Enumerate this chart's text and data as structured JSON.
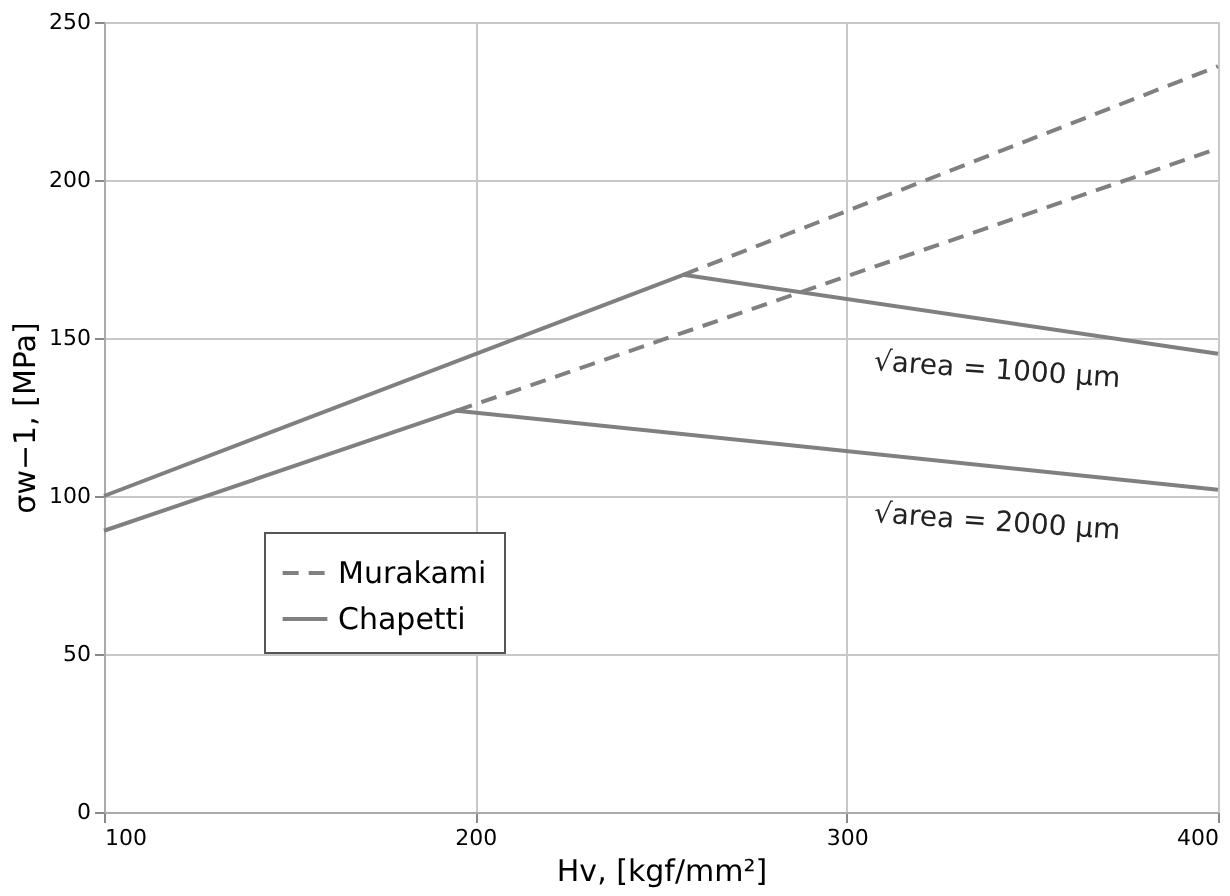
{
  "chart_data": {
    "type": "line",
    "xlabel": "Hv, [kgf/mm²]",
    "ylabel": "σw−1, [MPa]",
    "xlim": [
      100,
      400
    ],
    "xticks": [
      100,
      200,
      300,
      400
    ],
    "ylim": [
      0,
      250
    ],
    "yticks": [
      0,
      50,
      100,
      150,
      200,
      250
    ],
    "grid": true,
    "legend": "bottom left",
    "marker": "none",
    "series": [
      {
        "name": "Murakami",
        "color": "#808080",
        "line_style": "dashed",
        "x": [
          256,
          400
        ],
        "values": [
          170,
          236
        ]
      },
      {
        "color": "#808080",
        "line_style": "dashed",
        "x": [
          195,
          400
        ],
        "values": [
          127,
          210
        ]
      },
      {
        "name": "Chapetti",
        "color": "#808080",
        "line_style": "solid",
        "x": [
          100,
          256,
          400
        ],
        "values": [
          100,
          170,
          145
        ]
      },
      {
        "color": "#808080",
        "line_style": "solid",
        "x": [
          100,
          195,
          400
        ],
        "values": [
          89,
          127,
          102
        ]
      }
    ],
    "annotations": [
      "√area = 1000 μm",
      "√area = 2000 μm"
    ]
  }
}
